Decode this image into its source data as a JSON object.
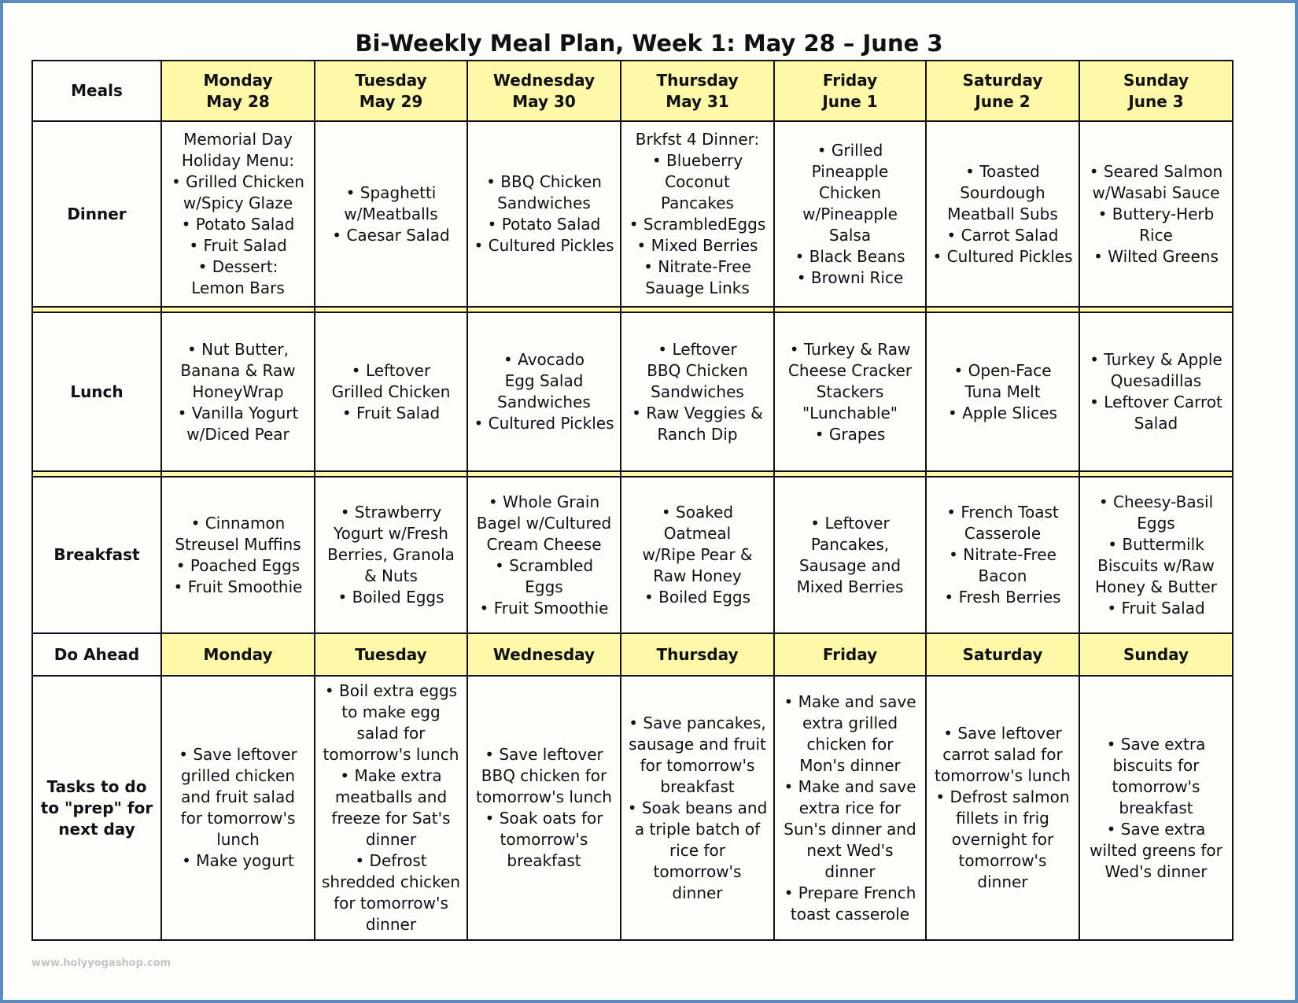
{
  "title": "Bi-Weekly Meal Plan, Week 1: May 28 – June 3",
  "colors": {
    "header_yellow": "#fdf9a9",
    "frame_blue": "#5a8cbf"
  },
  "header": {
    "meals_label": "Meals",
    "days": [
      {
        "day": "Monday",
        "date": "May 28"
      },
      {
        "day": "Tuesday",
        "date": "May 29"
      },
      {
        "day": "Wednesday",
        "date": "May 30"
      },
      {
        "day": "Thursday",
        "date": "May 31"
      },
      {
        "day": "Friday",
        "date": "June 1"
      },
      {
        "day": "Saturday",
        "date": "June 2"
      },
      {
        "day": "Sunday",
        "date": "June 3"
      }
    ]
  },
  "meals": [
    {
      "label": "Dinner",
      "cells": [
        [
          "Memorial Day",
          "Holiday Menu:",
          "• Grilled Chicken",
          "w/Spicy Glaze",
          "• Potato Salad",
          "• Fruit Salad",
          "• Dessert:",
          "Lemon Bars"
        ],
        [
          "• Spaghetti",
          "w/Meatballs",
          "• Caesar Salad"
        ],
        [
          "• BBQ Chicken",
          "Sandwiches",
          "• Potato Salad",
          "• Cultured Pickles"
        ],
        [
          "Brkfst 4 Dinner:",
          "• Blueberry",
          "Coconut",
          "Pancakes",
          "• ScrambledEggs",
          "• Mixed Berries",
          "• Nitrate-Free",
          "Sauage Links"
        ],
        [
          "• Grilled",
          "Pineapple",
          "Chicken",
          "w/Pineapple",
          "Salsa",
          "• Black Beans",
          "• Browni Rice"
        ],
        [
          "• Toasted",
          "Sourdough",
          "Meatball Subs",
          "• Carrot Salad",
          "• Cultured Pickles"
        ],
        [
          "• Seared Salmon",
          "w/Wasabi Sauce",
          "• Buttery-Herb",
          "Rice",
          "• Wilted Greens"
        ]
      ]
    },
    {
      "label": "Lunch",
      "cells": [
        [
          "• Nut Butter,",
          "Banana & Raw",
          "HoneyWrap",
          "• Vanilla Yogurt",
          "w/Diced Pear"
        ],
        [
          "• Leftover",
          "Grilled Chicken",
          "• Fruit Salad"
        ],
        [
          "• Avocado",
          "Egg Salad",
          "Sandwiches",
          "• Cultured Pickles"
        ],
        [
          "• Leftover",
          "BBQ Chicken",
          "Sandwiches",
          "• Raw Veggies &",
          "Ranch Dip"
        ],
        [
          "• Turkey & Raw",
          "Cheese Cracker",
          "Stackers",
          "\"Lunchable\"",
          "• Grapes"
        ],
        [
          "• Open-Face",
          "Tuna Melt",
          "• Apple Slices"
        ],
        [
          "• Turkey & Apple",
          "Quesadillas",
          "• Leftover Carrot",
          "Salad"
        ]
      ]
    },
    {
      "label": "Breakfast",
      "cells": [
        [
          "• Cinnamon",
          "Streusel Muffins",
          "• Poached Eggs",
          "• Fruit Smoothie"
        ],
        [
          "• Strawberry",
          "Yogurt w/Fresh",
          "Berries, Granola",
          "& Nuts",
          "• Boiled Eggs"
        ],
        [
          "• Whole Grain",
          "Bagel w/Cultured",
          "Cream Cheese",
          "• Scrambled",
          "Eggs",
          "• Fruit Smoothie"
        ],
        [
          "• Soaked",
          "Oatmeal",
          "w/Ripe Pear &",
          "Raw Honey",
          "• Boiled Eggs"
        ],
        [
          "• Leftover",
          "Pancakes,",
          "Sausage and",
          "Mixed Berries"
        ],
        [
          "• French Toast",
          "Casserole",
          "• Nitrate-Free",
          "Bacon",
          "• Fresh Berries"
        ],
        [
          "• Cheesy-Basil",
          "Eggs",
          "• Buttermilk",
          "Biscuits w/Raw",
          "Honey & Butter",
          "• Fruit Salad"
        ]
      ]
    }
  ],
  "do_ahead": {
    "label": "Do Ahead",
    "days": [
      "Monday",
      "Tuesday",
      "Wednesday",
      "Thursday",
      "Friday",
      "Saturday",
      "Sunday"
    ]
  },
  "tasks": {
    "label": [
      "Tasks to do",
      "to \"prep\" for",
      "next day"
    ],
    "cells": [
      [
        "• Save leftover",
        "grilled chicken",
        "and fruit salad",
        "for tomorrow's",
        "lunch",
        "• Make yogurt"
      ],
      [
        "• Boil extra eggs",
        "to make egg",
        "salad for",
        "tomorrow's lunch",
        "• Make extra",
        "meatballs and",
        "freeze for Sat's",
        "dinner",
        "• Defrost",
        "shredded chicken",
        "for tomorrow's",
        "dinner"
      ],
      [
        "• Save leftover",
        "BBQ chicken for",
        "tomorrow's lunch",
        "• Soak oats for",
        "tomorrow's",
        "breakfast"
      ],
      [
        "• Save pancakes,",
        "sausage and fruit",
        "for tomorrow's",
        "breakfast",
        "• Soak beans and",
        "a triple batch of",
        "rice for",
        "tomorrow's",
        "dinner"
      ],
      [
        "• Make and save",
        "extra grilled",
        "chicken for",
        "Mon's dinner",
        "• Make and save",
        "extra rice for",
        "Sun's dinner and",
        "next Wed's",
        "dinner",
        "• Prepare French",
        "toast casserole"
      ],
      [
        "• Save leftover",
        "carrot salad for",
        "tomorrow's lunch",
        "• Defrost salmon",
        "fillets in frig",
        "overnight for",
        "tomorrow's",
        "dinner"
      ],
      [
        "• Save extra",
        "biscuits for",
        "tomorrow's",
        "breakfast",
        "• Save extra",
        "wilted greens for",
        "Wed's dinner"
      ]
    ]
  },
  "watermark": "www.holyyogashop.com"
}
